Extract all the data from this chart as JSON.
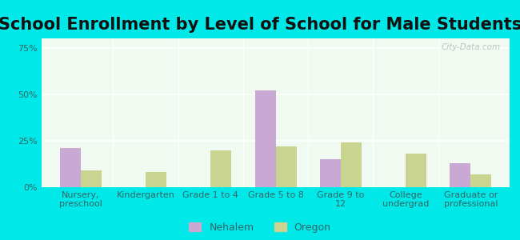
{
  "title": "School Enrollment by Level of School for Male Students",
  "categories": [
    "Nursery,\npreschool",
    "Kindergarten",
    "Grade 1 to 4",
    "Grade 5 to 8",
    "Grade 9 to\n12",
    "College\nundergrad",
    "Graduate or\nprofessional"
  ],
  "nehalem": [
    21,
    0,
    0,
    52,
    15,
    0,
    13
  ],
  "oregon": [
    9,
    8,
    20,
    22,
    24,
    18,
    7
  ],
  "nehalem_color": "#c9a8d4",
  "oregon_color": "#c8d490",
  "bg_outer": "#00e8e8",
  "bg_plot": "#e8f5e9",
  "yticks": [
    0,
    25,
    50,
    75
  ],
  "ylim": [
    0,
    80
  ],
  "bar_width": 0.32,
  "legend_labels": [
    "Nehalem",
    "Oregon"
  ],
  "title_fontsize": 15,
  "tick_fontsize": 8,
  "legend_fontsize": 9,
  "title_color": "#111111",
  "tick_color": "#336666"
}
